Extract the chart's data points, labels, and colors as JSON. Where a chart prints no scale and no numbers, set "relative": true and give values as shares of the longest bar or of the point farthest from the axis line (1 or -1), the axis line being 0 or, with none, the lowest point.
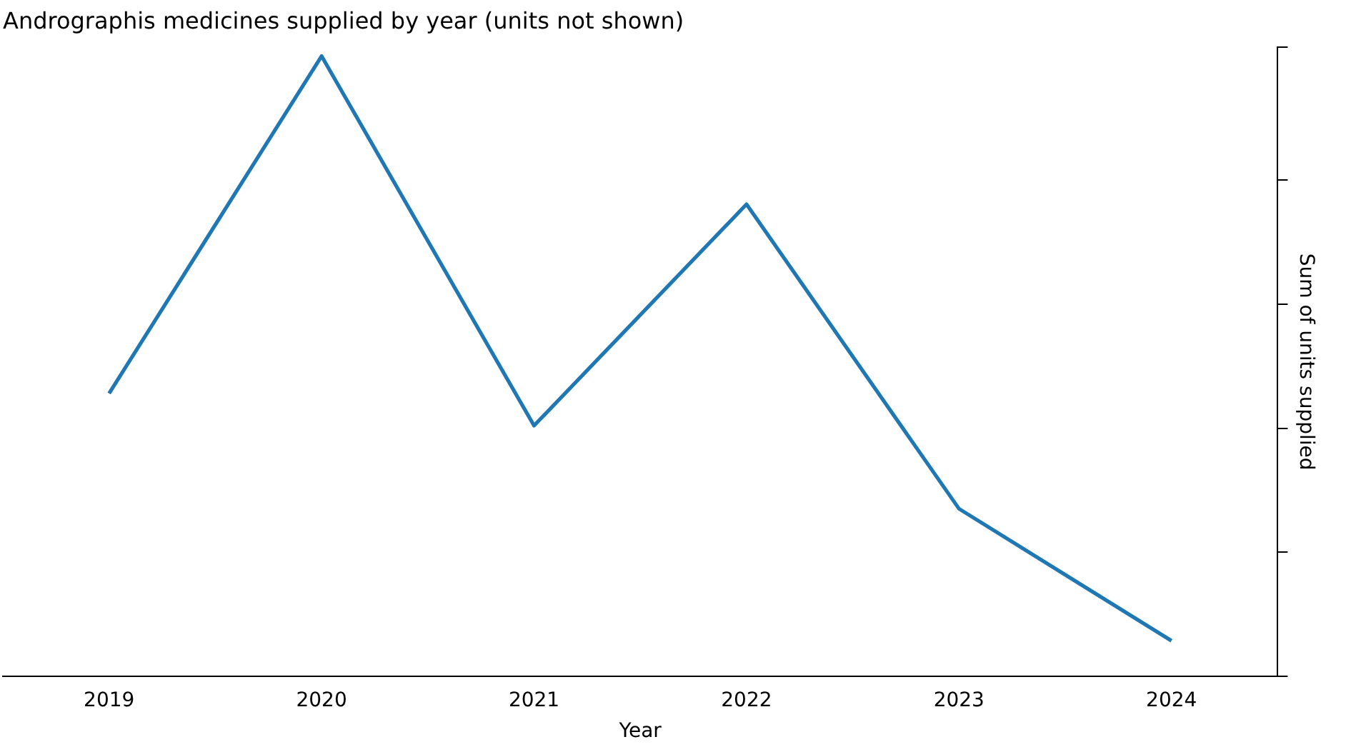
{
  "chart_data": {
    "type": "line",
    "title": "Andrographis medicines supplied by year (units not shown)",
    "xlabel": "Year",
    "ylabel": "Sum of units supplied",
    "categories": [
      "2019",
      "2020",
      "2021",
      "2022",
      "2023",
      "2024"
    ],
    "series": [
      {
        "color": "#1f77b4",
        "values": [
          0.456,
          1,
          0.404,
          0.761,
          0.27,
          0.057
        ]
      }
    ],
    "relative": true,
    "grid": false,
    "legend": false,
    "marker": "none",
    "line_style": "solid",
    "tick_labels": "x"
  }
}
